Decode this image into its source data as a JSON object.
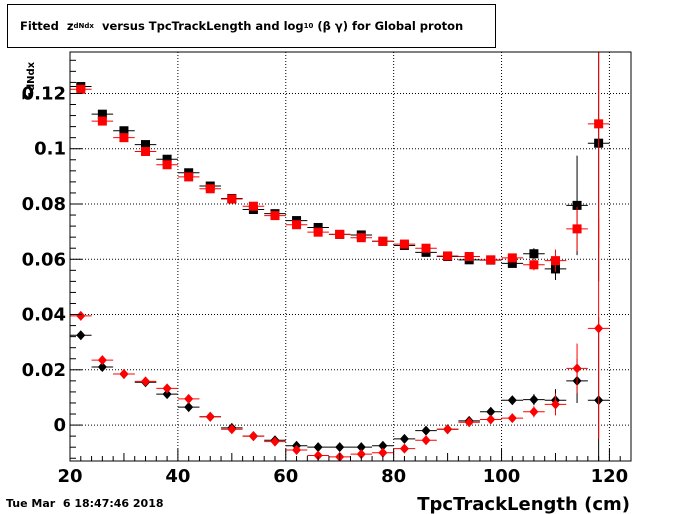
{
  "title": {
    "prefix": "Fitted  z",
    "sub1": "dNdx",
    "middle": "  versus TpcTrackLength and log",
    "sub2": "10",
    "suffix": " (β γ) for Global proton"
  },
  "timestamp": "Tue Mar  6 18:47:46 2018",
  "chart_data": {
    "type": "scatter",
    "xlabel": "TpcTrackLength (cm)",
    "ylabel_main": "z",
    "ylabel_sub": "dNdx",
    "xlim": [
      20,
      124
    ],
    "ylim": [
      -0.013,
      0.135
    ],
    "xticks": [
      20,
      40,
      60,
      80,
      100,
      120
    ],
    "xtick_labels": [
      "20",
      "40",
      "60",
      "80",
      "100",
      "120"
    ],
    "yticks": [
      0,
      0.02,
      0.04,
      0.06,
      0.08,
      0.1,
      0.12
    ],
    "ytick_labels": [
      "0",
      "0.02",
      "0.04",
      "0.06",
      "0.08",
      "0.1",
      "0.12"
    ],
    "grid": true,
    "series": [
      {
        "marker": "square",
        "color": "#000000",
        "xerr": 2,
        "points": [
          {
            "x": 22,
            "y": 0.1225,
            "yerr": 0.001
          },
          {
            "x": 26,
            "y": 0.1125,
            "yerr": 0.001
          },
          {
            "x": 30,
            "y": 0.1065,
            "yerr": 0.001
          },
          {
            "x": 34,
            "y": 0.1015,
            "yerr": 0.001
          },
          {
            "x": 38,
            "y": 0.0962,
            "yerr": 0.001
          },
          {
            "x": 42,
            "y": 0.0913,
            "yerr": 0.001
          },
          {
            "x": 46,
            "y": 0.0865,
            "yerr": 0.001
          },
          {
            "x": 50,
            "y": 0.082,
            "yerr": 0.001
          },
          {
            "x": 54,
            "y": 0.078,
            "yerr": 0.001
          },
          {
            "x": 58,
            "y": 0.0765,
            "yerr": 0.001
          },
          {
            "x": 62,
            "y": 0.074,
            "yerr": 0.001
          },
          {
            "x": 66,
            "y": 0.0715,
            "yerr": 0.001
          },
          {
            "x": 70,
            "y": 0.069,
            "yerr": 0.001
          },
          {
            "x": 74,
            "y": 0.0688,
            "yerr": 0.001
          },
          {
            "x": 78,
            "y": 0.0665,
            "yerr": 0.001
          },
          {
            "x": 82,
            "y": 0.065,
            "yerr": 0.001
          },
          {
            "x": 86,
            "y": 0.0625,
            "yerr": 0.001
          },
          {
            "x": 90,
            "y": 0.061,
            "yerr": 0.001
          },
          {
            "x": 94,
            "y": 0.0598,
            "yerr": 0.001
          },
          {
            "x": 98,
            "y": 0.0597,
            "yerr": 0.001
          },
          {
            "x": 102,
            "y": 0.0585,
            "yerr": 0.0015
          },
          {
            "x": 106,
            "y": 0.062,
            "yerr": 0.002
          },
          {
            "x": 110,
            "y": 0.0565,
            "yerr": 0.004
          },
          {
            "x": 114,
            "y": 0.0795,
            "yerr": 0.018
          },
          {
            "x": 118,
            "y": 0.102,
            "yerr": 0.05
          }
        ]
      },
      {
        "marker": "square",
        "color": "#ff0000",
        "xerr": 2,
        "points": [
          {
            "x": 22,
            "y": 0.1215,
            "yerr": 0.001
          },
          {
            "x": 26,
            "y": 0.11,
            "yerr": 0.001
          },
          {
            "x": 30,
            "y": 0.104,
            "yerr": 0.001
          },
          {
            "x": 34,
            "y": 0.099,
            "yerr": 0.001
          },
          {
            "x": 38,
            "y": 0.0942,
            "yerr": 0.001
          },
          {
            "x": 42,
            "y": 0.0898,
            "yerr": 0.001
          },
          {
            "x": 46,
            "y": 0.0855,
            "yerr": 0.001
          },
          {
            "x": 50,
            "y": 0.0818,
            "yerr": 0.001
          },
          {
            "x": 54,
            "y": 0.0792,
            "yerr": 0.001
          },
          {
            "x": 58,
            "y": 0.0758,
            "yerr": 0.001
          },
          {
            "x": 62,
            "y": 0.0725,
            "yerr": 0.001
          },
          {
            "x": 66,
            "y": 0.0698,
            "yerr": 0.001
          },
          {
            "x": 70,
            "y": 0.069,
            "yerr": 0.001
          },
          {
            "x": 74,
            "y": 0.0678,
            "yerr": 0.001
          },
          {
            "x": 78,
            "y": 0.0665,
            "yerr": 0.001
          },
          {
            "x": 82,
            "y": 0.0655,
            "yerr": 0.001
          },
          {
            "x": 86,
            "y": 0.064,
            "yerr": 0.001
          },
          {
            "x": 90,
            "y": 0.0612,
            "yerr": 0.001
          },
          {
            "x": 94,
            "y": 0.061,
            "yerr": 0.001
          },
          {
            "x": 98,
            "y": 0.0598,
            "yerr": 0.001
          },
          {
            "x": 102,
            "y": 0.0605,
            "yerr": 0.0015
          },
          {
            "x": 106,
            "y": 0.058,
            "yerr": 0.002
          },
          {
            "x": 110,
            "y": 0.0595,
            "yerr": 0.004
          },
          {
            "x": 114,
            "y": 0.071,
            "yerr": 0.008
          },
          {
            "x": 118,
            "y": 0.109,
            "yerr": 0.045
          }
        ]
      },
      {
        "marker": "diamond",
        "color": "#000000",
        "xerr": 2,
        "points": [
          {
            "x": 22,
            "y": 0.0325,
            "yerr": 0.0005
          },
          {
            "x": 26,
            "y": 0.021,
            "yerr": 0.0005
          },
          {
            "x": 30,
            "y": 0.0185,
            "yerr": 0.0005
          },
          {
            "x": 34,
            "y": 0.0155,
            "yerr": 0.0005
          },
          {
            "x": 38,
            "y": 0.0112,
            "yerr": 0.0005
          },
          {
            "x": 42,
            "y": 0.0065,
            "yerr": 0.0005
          },
          {
            "x": 46,
            "y": 0.003,
            "yerr": 0.0005
          },
          {
            "x": 50,
            "y": -0.001,
            "yerr": 0.0005
          },
          {
            "x": 54,
            "y": -0.004,
            "yerr": 0.0005
          },
          {
            "x": 58,
            "y": -0.0055,
            "yerr": 0.0005
          },
          {
            "x": 62,
            "y": -0.0075,
            "yerr": 0.0005
          },
          {
            "x": 66,
            "y": -0.008,
            "yerr": 0.0005
          },
          {
            "x": 70,
            "y": -0.008,
            "yerr": 0.0005
          },
          {
            "x": 74,
            "y": -0.008,
            "yerr": 0.0005
          },
          {
            "x": 78,
            "y": -0.0075,
            "yerr": 0.0005
          },
          {
            "x": 82,
            "y": -0.005,
            "yerr": 0.0005
          },
          {
            "x": 86,
            "y": -0.002,
            "yerr": 0.0005
          },
          {
            "x": 90,
            "y": -0.0015,
            "yerr": 0.0005
          },
          {
            "x": 94,
            "y": 0.0015,
            "yerr": 0.0005
          },
          {
            "x": 98,
            "y": 0.0048,
            "yerr": 0.001
          },
          {
            "x": 102,
            "y": 0.009,
            "yerr": 0.0015
          },
          {
            "x": 106,
            "y": 0.0092,
            "yerr": 0.002
          },
          {
            "x": 110,
            "y": 0.009,
            "yerr": 0.004
          },
          {
            "x": 114,
            "y": 0.016,
            "yerr": 0.008
          },
          {
            "x": 118,
            "y": 0.009,
            "yerr": 0.03
          }
        ]
      },
      {
        "marker": "diamond",
        "color": "#ff0000",
        "xerr": 2,
        "points": [
          {
            "x": 22,
            "y": 0.0395,
            "yerr": 0.0005
          },
          {
            "x": 26,
            "y": 0.0235,
            "yerr": 0.0005
          },
          {
            "x": 30,
            "y": 0.0185,
            "yerr": 0.0005
          },
          {
            "x": 34,
            "y": 0.0158,
            "yerr": 0.0005
          },
          {
            "x": 38,
            "y": 0.0133,
            "yerr": 0.0005
          },
          {
            "x": 42,
            "y": 0.0095,
            "yerr": 0.0005
          },
          {
            "x": 46,
            "y": 0.003,
            "yerr": 0.0005
          },
          {
            "x": 50,
            "y": -0.0015,
            "yerr": 0.0005
          },
          {
            "x": 54,
            "y": -0.004,
            "yerr": 0.0005
          },
          {
            "x": 58,
            "y": -0.006,
            "yerr": 0.0005
          },
          {
            "x": 62,
            "y": -0.009,
            "yerr": 0.0005
          },
          {
            "x": 66,
            "y": -0.011,
            "yerr": 0.0005
          },
          {
            "x": 70,
            "y": -0.0115,
            "yerr": 0.0005
          },
          {
            "x": 74,
            "y": -0.0105,
            "yerr": 0.0005
          },
          {
            "x": 78,
            "y": -0.01,
            "yerr": 0.0005
          },
          {
            "x": 82,
            "y": -0.0085,
            "yerr": 0.0005
          },
          {
            "x": 86,
            "y": -0.0055,
            "yerr": 0.0005
          },
          {
            "x": 90,
            "y": -0.0015,
            "yerr": 0.0005
          },
          {
            "x": 94,
            "y": 0.001,
            "yerr": 0.0005
          },
          {
            "x": 98,
            "y": 0.002,
            "yerr": 0.001
          },
          {
            "x": 102,
            "y": 0.0025,
            "yerr": 0.0015
          },
          {
            "x": 106,
            "y": 0.0048,
            "yerr": 0.002
          },
          {
            "x": 110,
            "y": 0.0075,
            "yerr": 0.004
          },
          {
            "x": 114,
            "y": 0.0205,
            "yerr": 0.009
          },
          {
            "x": 118,
            "y": 0.035,
            "yerr": 0.04
          }
        ]
      }
    ]
  },
  "colors": {
    "black_series": "#000000",
    "red_series": "#ff0000"
  }
}
